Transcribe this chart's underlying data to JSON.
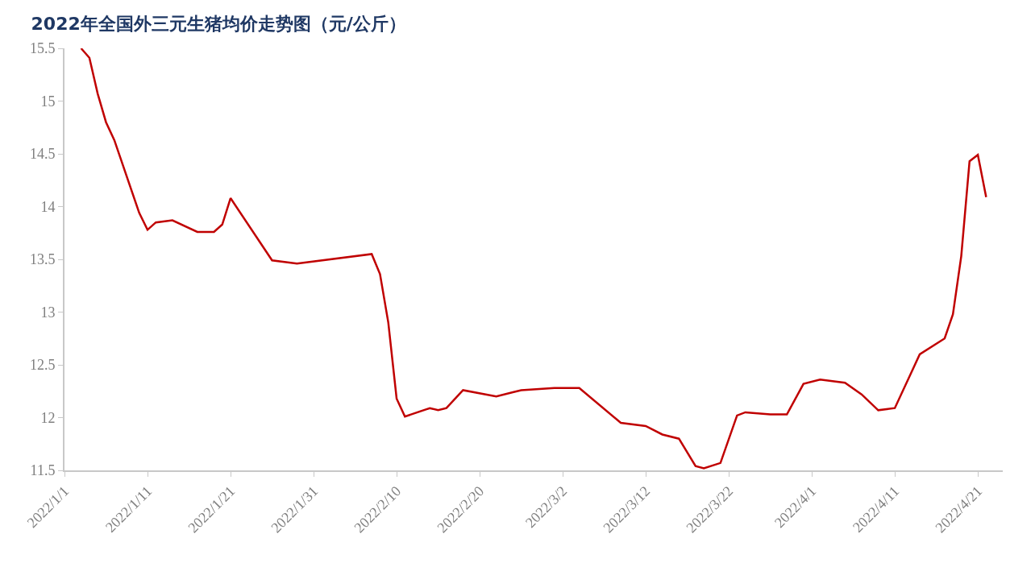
{
  "chart_data": {
    "type": "line",
    "title": "2022年全国外三元生猪均价走势图（元/公斤）",
    "x": [
      "2022-01-03",
      "2022-01-04",
      "2022-01-05",
      "2022-01-06",
      "2022-01-07",
      "2022-01-10",
      "2022-01-11",
      "2022-01-12",
      "2022-01-14",
      "2022-01-17",
      "2022-01-19",
      "2022-01-20",
      "2022-01-21",
      "2022-01-26",
      "2022-01-29",
      "2022-02-07",
      "2022-02-08",
      "2022-02-09",
      "2022-02-10",
      "2022-02-11",
      "2022-02-14",
      "2022-02-15",
      "2022-02-16",
      "2022-02-18",
      "2022-02-22",
      "2022-02-24",
      "2022-02-25",
      "2022-03-01",
      "2022-03-04",
      "2022-03-09",
      "2022-03-12",
      "2022-03-14",
      "2022-03-16",
      "2022-03-18",
      "2022-03-19",
      "2022-03-21",
      "2022-03-23",
      "2022-03-24",
      "2022-03-27",
      "2022-03-29",
      "2022-03-31",
      "2022-04-02",
      "2022-04-05",
      "2022-04-07",
      "2022-04-09",
      "2022-04-11",
      "2022-04-13",
      "2022-04-14",
      "2022-04-17",
      "2022-04-18",
      "2022-04-19",
      "2022-04-20",
      "2022-04-21",
      "2022-04-22"
    ],
    "series": [
      {
        "color": "#c00000",
        "values": [
          15.5,
          15.41,
          15.07,
          14.8,
          14.63,
          13.94,
          13.78,
          13.85,
          13.87,
          13.76,
          13.76,
          13.83,
          14.08,
          13.49,
          13.46,
          13.55,
          13.36,
          12.9,
          12.18,
          12.01,
          12.09,
          12.07,
          12.09,
          12.26,
          12.2,
          12.24,
          12.26,
          12.28,
          12.28,
          11.95,
          11.92,
          11.84,
          11.8,
          11.54,
          11.52,
          11.57,
          12.02,
          12.05,
          12.03,
          12.03,
          12.32,
          12.36,
          12.33,
          12.22,
          12.07,
          12.09,
          12.43,
          12.6,
          12.75,
          12.98,
          13.53,
          14.43,
          14.49,
          14.09
        ]
      }
    ],
    "xlim": [
      "2022-01-01",
      "2022-04-24"
    ],
    "xticks": [
      {
        "value": "2022-01-01",
        "label": "2022/1/1"
      },
      {
        "value": "2022-01-11",
        "label": "2022/1/11"
      },
      {
        "value": "2022-01-21",
        "label": "2022/1/21"
      },
      {
        "value": "2022-01-31",
        "label": "2022/1/31"
      },
      {
        "value": "2022-02-10",
        "label": "2022/2/10"
      },
      {
        "value": "2022-02-20",
        "label": "2022/2/20"
      },
      {
        "value": "2022-03-02",
        "label": "2022/3/2"
      },
      {
        "value": "2022-03-12",
        "label": "2022/3/12"
      },
      {
        "value": "2022-03-22",
        "label": "2022/3/22"
      },
      {
        "value": "2022-04-01",
        "label": "2022/4/1"
      },
      {
        "value": "2022-04-11",
        "label": "2022/4/11"
      },
      {
        "value": "2022-04-21",
        "label": "2022/4/21"
      }
    ],
    "ylim": [
      11.5,
      15.5
    ],
    "yticks": [
      11.5,
      12,
      12.5,
      13,
      13.5,
      14,
      14.5,
      15,
      15.5
    ],
    "marker": "none",
    "line_style": "solid"
  }
}
